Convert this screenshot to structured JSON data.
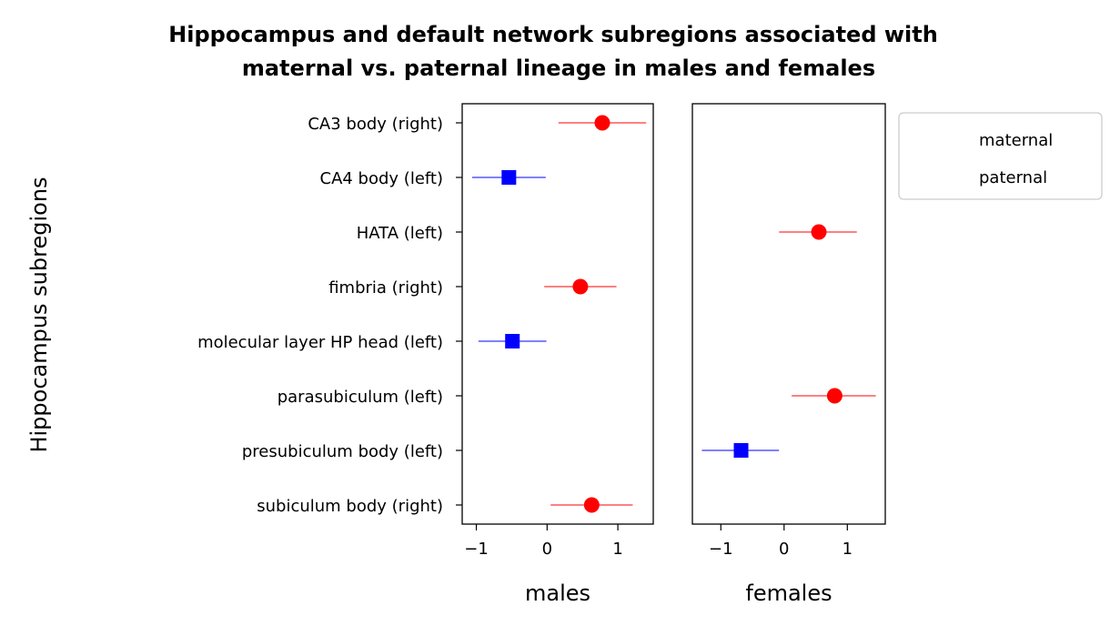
{
  "chart_data": {
    "type": "scatter",
    "title_line1": "Hippocampus and default network subregions associated with",
    "title_line2": "maternal vs. paternal lineage in males and females",
    "ylabel": "Hippocampus subregions",
    "categories": [
      "CA3 body (right)",
      "CA4 body (left)",
      "HATA (left)",
      "fimbria (right)",
      "molecular layer HP head (left)",
      "parasubiculum (left)",
      "presubiculum body (left)",
      "subiculum body (right)"
    ],
    "legend": [
      {
        "name": "maternal",
        "color": "#ff0000",
        "marker": "circle"
      },
      {
        "name": "paternal",
        "color": "#0000ff",
        "marker": "square"
      }
    ],
    "legend_placement": "outside right, top",
    "panels": [
      {
        "xlabel": "males",
        "xlim": [
          -1.2,
          1.5
        ],
        "xticks": [
          -1,
          0,
          1
        ],
        "xtick_labels": [
          "−1",
          "0",
          "1"
        ],
        "points": [
          {
            "category": "CA3 body (right)",
            "lineage": "maternal",
            "x": 0.78,
            "lo": 0.16,
            "hi": 1.4
          },
          {
            "category": "CA4 body (left)",
            "lineage": "paternal",
            "x": -0.54,
            "lo": -1.06,
            "hi": -0.02
          },
          {
            "category": "fimbria (right)",
            "lineage": "maternal",
            "x": 0.47,
            "lo": -0.04,
            "hi": 0.98
          },
          {
            "category": "molecular layer HP head (left)",
            "lineage": "paternal",
            "x": -0.49,
            "lo": -0.97,
            "hi": -0.01
          },
          {
            "category": "subiculum body (right)",
            "lineage": "maternal",
            "x": 0.63,
            "lo": 0.05,
            "hi": 1.21
          }
        ]
      },
      {
        "xlabel": "females",
        "xlim": [
          -1.45,
          1.6
        ],
        "xticks": [
          -1,
          0,
          1
        ],
        "xtick_labels": [
          "−1",
          "0",
          "1"
        ],
        "points": [
          {
            "category": "HATA (left)",
            "lineage": "maternal",
            "x": 0.55,
            "lo": -0.08,
            "hi": 1.15
          },
          {
            "category": "parasubiculum (left)",
            "lineage": "maternal",
            "x": 0.8,
            "lo": 0.12,
            "hi": 1.45
          },
          {
            "category": "presubiculum body (left)",
            "lineage": "paternal",
            "x": -0.68,
            "lo": -1.3,
            "hi": -0.08
          }
        ]
      }
    ]
  }
}
